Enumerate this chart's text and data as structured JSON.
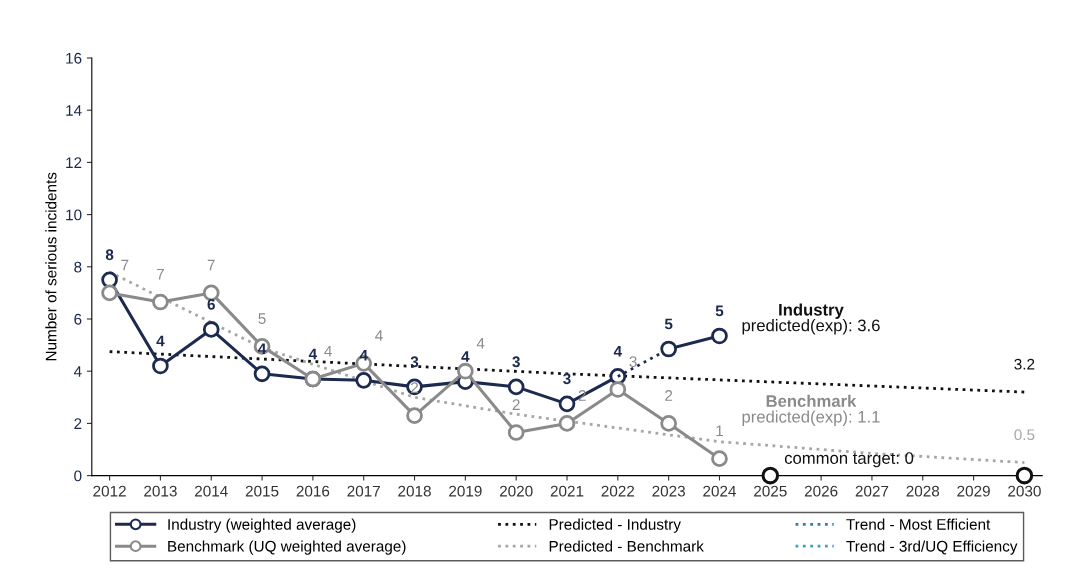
{
  "chart_data": {
    "type": "line",
    "ylabel": "Number of serious incidents",
    "categories": [
      "2012",
      "2013",
      "2014",
      "2015",
      "2016",
      "2017",
      "2018",
      "2019",
      "2020",
      "2021",
      "2022",
      "2023",
      "2024",
      "2025",
      "2026",
      "2027",
      "2028",
      "2029",
      "2030"
    ],
    "ylim": [
      0,
      16
    ],
    "yticks": [
      0,
      2,
      4,
      6,
      8,
      10,
      12,
      14,
      16
    ],
    "grid": false,
    "legend": "bottom",
    "series": [
      {
        "name": "Industry (weighted average)",
        "color": "#1b2a4e",
        "marker": "circle",
        "line_style": "solid",
        "values": [
          7.5,
          4.2,
          5.6,
          3.9,
          3.7,
          3.65,
          3.4,
          3.6,
          3.4,
          2.75,
          3.8,
          null,
          null,
          null,
          null,
          null,
          null,
          null,
          null
        ],
        "value_labels": [
          "8",
          "4",
          "6",
          "4",
          "4",
          "4",
          "3",
          "4",
          "3",
          "3",
          "4",
          null,
          null,
          null,
          null,
          null,
          null,
          null,
          null
        ]
      },
      {
        "color": "#1b2a4e",
        "marker": "none",
        "line_style": "dotted",
        "values": [
          null,
          null,
          null,
          null,
          null,
          null,
          null,
          null,
          null,
          null,
          3.8,
          4.85,
          null,
          null,
          null,
          null,
          null,
          null,
          null
        ]
      },
      {
        "color": "#1b2a4e",
        "marker": "circle",
        "line_style": "solid",
        "values": [
          null,
          null,
          null,
          null,
          null,
          null,
          null,
          null,
          null,
          null,
          null,
          4.85,
          5.35,
          null,
          null,
          null,
          null,
          null,
          null
        ],
        "value_labels": [
          null,
          null,
          null,
          null,
          null,
          null,
          null,
          null,
          null,
          null,
          null,
          "5",
          "5",
          null,
          null,
          null,
          null,
          null,
          null
        ]
      },
      {
        "name": "Benchmark (UQ weighted average)",
        "color": "#8a8a8a",
        "marker": "circle",
        "line_style": "solid",
        "values": [
          7.0,
          6.65,
          7.0,
          4.95,
          3.7,
          4.3,
          2.3,
          4.0,
          1.65,
          2.0,
          3.3,
          2.0,
          0.65,
          null,
          null,
          null,
          null,
          null,
          null
        ],
        "value_labels": [
          "7",
          "7",
          "7",
          "5",
          "4",
          "4",
          "2",
          "4",
          "2",
          "2",
          "3",
          "2",
          "1",
          null,
          null,
          null,
          null,
          null,
          null
        ]
      },
      {
        "name": "Predicted - Industry",
        "color": "#111111",
        "marker": "none",
        "line_style": "dotted",
        "values": [
          4.75,
          null,
          null,
          null,
          null,
          null,
          null,
          null,
          null,
          3.9,
          null,
          null,
          null,
          null,
          null,
          null,
          null,
          null,
          3.2
        ],
        "value_labels": [
          null,
          null,
          null,
          null,
          null,
          null,
          null,
          null,
          null,
          null,
          null,
          null,
          null,
          null,
          null,
          null,
          null,
          null,
          "3.2"
        ]
      },
      {
        "name": "Predicted - Benchmark",
        "color": "#a6a6a6",
        "marker": "none",
        "line_style": "dotted",
        "values": [
          7.8,
          null,
          null,
          4.9,
          null,
          null,
          3.0,
          null,
          2.35,
          null,
          null,
          null,
          1.3,
          null,
          null,
          0.85,
          null,
          null,
          0.5
        ],
        "value_labels": [
          null,
          null,
          null,
          null,
          null,
          null,
          null,
          null,
          null,
          null,
          null,
          null,
          null,
          null,
          null,
          null,
          null,
          null,
          "0.5"
        ]
      },
      {
        "name": "Trend - Most Efficient",
        "color": "#2e7db5",
        "marker": "none",
        "line_style": "dotted",
        "values": [
          null,
          null,
          null,
          null,
          null,
          null,
          null,
          null,
          null,
          null,
          null,
          null,
          null,
          null,
          null,
          null,
          null,
          null,
          null
        ]
      },
      {
        "name": "Trend - 3rd/UQ Efficiency",
        "color": "#3a9fc9",
        "marker": "none",
        "line_style": "dotted",
        "values": [
          null,
          null,
          null,
          null,
          null,
          null,
          null,
          null,
          null,
          null,
          null,
          null,
          null,
          null,
          null,
          null,
          null,
          null,
          null
        ]
      },
      {
        "type": "scatter",
        "color": "#111111",
        "marker": "circle",
        "values": [
          null,
          null,
          null,
          null,
          null,
          null,
          null,
          null,
          null,
          null,
          null,
          null,
          null,
          0,
          null,
          null,
          null,
          null,
          0
        ]
      }
    ],
    "annotations": [
      "Industry",
      "predicted(exp): 3.6",
      "Benchmark",
      "predicted(exp): 1.1",
      {
        "text": "common target: 0",
        "x": "2025",
        "y": 0
      }
    ]
  }
}
